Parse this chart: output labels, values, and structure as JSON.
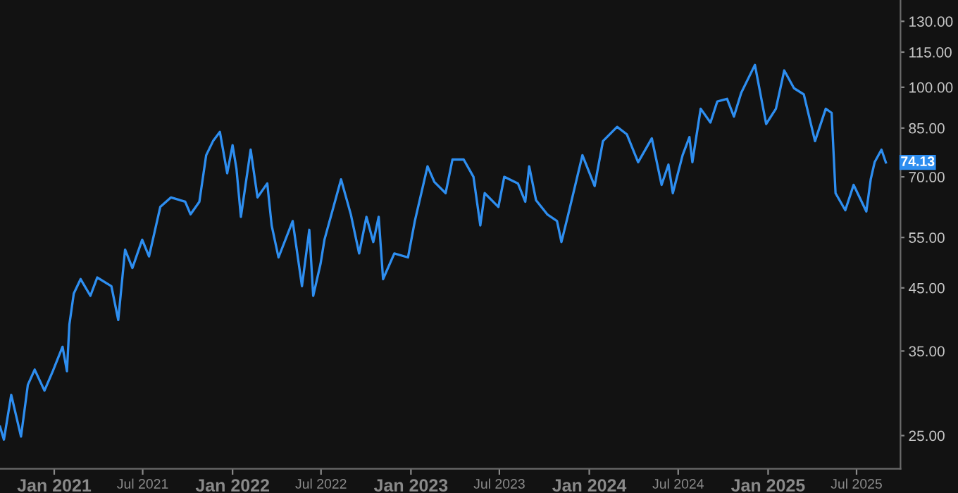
{
  "chart_data": {
    "type": "line",
    "log": "y",
    "grid": false,
    "line_style": "solid",
    "marker": "none",
    "xlim": [
      "2020-09-12",
      "2025-09-29"
    ],
    "ylim": [
      21.9,
      141.5
    ],
    "xticks": [
      {
        "value": "2021-01-01",
        "label": "Jan 2021"
      },
      {
        "value": "2021-07-01",
        "label": "Jul 2021"
      },
      {
        "value": "2022-01-01",
        "label": "Jan 2022"
      },
      {
        "value": "2022-07-01",
        "label": "Jul 2022"
      },
      {
        "value": "2023-01-01",
        "label": "Jan 2023"
      },
      {
        "value": "2023-07-01",
        "label": "Jul 2023"
      },
      {
        "value": "2024-01-01",
        "label": "Jan 2024"
      },
      {
        "value": "2024-07-01",
        "label": "Jul 2024"
      },
      {
        "value": "2025-01-01",
        "label": "Jan 2025"
      },
      {
        "value": "2025-07-01",
        "label": "Jul 2025"
      }
    ],
    "yticks": [
      {
        "value": 25,
        "label": "25.00"
      },
      {
        "value": 35,
        "label": "35.00"
      },
      {
        "value": 45,
        "label": "45.00"
      },
      {
        "value": 55,
        "label": "55.00"
      },
      {
        "value": 70,
        "label": "70.00"
      },
      {
        "value": 85,
        "label": "85.00"
      },
      {
        "value": 100,
        "label": "100.00"
      },
      {
        "value": 115,
        "label": "115.00"
      },
      {
        "value": 130,
        "label": "130.00"
      }
    ],
    "annotations": [
      {
        "text": "74.13",
        "y": 74.13
      }
    ],
    "x": [
      "2020-09-12",
      "2020-09-20",
      "2020-10-05",
      "2020-10-25",
      "2020-11-08",
      "2020-11-22",
      "2020-12-12",
      "2020-12-29",
      "2021-01-18",
      "2021-01-27",
      "2021-02-01",
      "2021-02-10",
      "2021-02-24",
      "2021-03-16",
      "2021-03-30",
      "2021-04-28",
      "2021-05-12",
      "2021-05-26",
      "2021-06-10",
      "2021-06-30",
      "2021-07-14",
      "2021-08-06",
      "2021-08-28",
      "2021-09-26",
      "2021-10-07",
      "2021-10-25",
      "2021-11-08",
      "2021-11-22",
      "2021-12-06",
      "2021-12-21",
      "2022-01-01",
      "2022-01-09",
      "2022-01-18",
      "2022-02-07",
      "2022-02-21",
      "2022-03-13",
      "2022-03-22",
      "2022-04-05",
      "2022-05-04",
      "2022-05-23",
      "2022-06-07",
      "2022-06-15",
      "2022-06-30",
      "2022-07-08",
      "2022-08-11",
      "2022-08-31",
      "2022-09-17",
      "2022-10-02",
      "2022-10-16",
      "2022-10-27",
      "2022-11-05",
      "2022-11-28",
      "2022-12-26",
      "2023-01-09",
      "2023-02-04",
      "2023-02-18",
      "2023-03-13",
      "2023-03-27",
      "2023-04-19",
      "2023-05-09",
      "2023-05-23",
      "2023-06-01",
      "2023-06-29",
      "2023-07-11",
      "2023-08-08",
      "2023-08-23",
      "2023-08-31",
      "2023-09-14",
      "2023-10-07",
      "2023-10-27",
      "2023-11-05",
      "2023-11-19",
      "2023-12-18",
      "2024-01-12",
      "2024-01-29",
      "2024-02-27",
      "2024-03-18",
      "2024-04-10",
      "2024-05-08",
      "2024-05-28",
      "2024-06-11",
      "2024-06-20",
      "2024-07-10",
      "2024-07-24",
      "2024-07-30",
      "2024-08-16",
      "2024-09-05",
      "2024-09-19",
      "2024-10-09",
      "2024-10-23",
      "2024-11-07",
      "2024-12-05",
      "2024-12-28",
      "2025-01-17",
      "2025-02-03",
      "2025-02-23",
      "2025-03-15",
      "2025-04-07",
      "2025-04-29",
      "2025-05-11",
      "2025-05-19",
      "2025-06-08",
      "2025-06-25",
      "2025-07-21",
      "2025-07-30",
      "2025-08-07",
      "2025-08-21",
      "2025-08-30"
    ],
    "series": [
      {
        "color": "#2e8ef0",
        "values": [
          25.9,
          24.6,
          29.4,
          24.9,
          30.6,
          32.5,
          29.9,
          32.3,
          35.6,
          32.3,
          38.9,
          44.0,
          46.6,
          43.6,
          46.9,
          45.3,
          39.6,
          52.4,
          48.7,
          54.5,
          51.0,
          62.1,
          64.5,
          63.4,
          60.3,
          63.4,
          76.3,
          80.7,
          83.7,
          71.0,
          79.4,
          72.2,
          59.7,
          78.0,
          64.5,
          68.2,
          57.7,
          50.8,
          58.7,
          45.3,
          56.7,
          43.6,
          49.5,
          54.5,
          69.3,
          60.3,
          51.6,
          59.7,
          54.0,
          59.7,
          46.6,
          51.6,
          50.8,
          58.7,
          73.0,
          68.6,
          65.6,
          75.0,
          75.0,
          70.0,
          57.7,
          65.6,
          62.1,
          70.0,
          68.2,
          63.4,
          73.0,
          63.8,
          60.3,
          58.7,
          54.0,
          60.3,
          76.3,
          67.5,
          80.7,
          85.4,
          82.9,
          74.2,
          81.6,
          67.8,
          73.5,
          65.6,
          76.3,
          82.0,
          74.2,
          91.8,
          86.9,
          94.5,
          95.5,
          89.0,
          97.8,
          109.3,
          86.4,
          91.8,
          106.9,
          99.6,
          97.2,
          80.7,
          91.8,
          90.3,
          65.6,
          61.3,
          67.8,
          61.0,
          69.3,
          74.2,
          78.0,
          74.13
        ]
      }
    ]
  }
}
